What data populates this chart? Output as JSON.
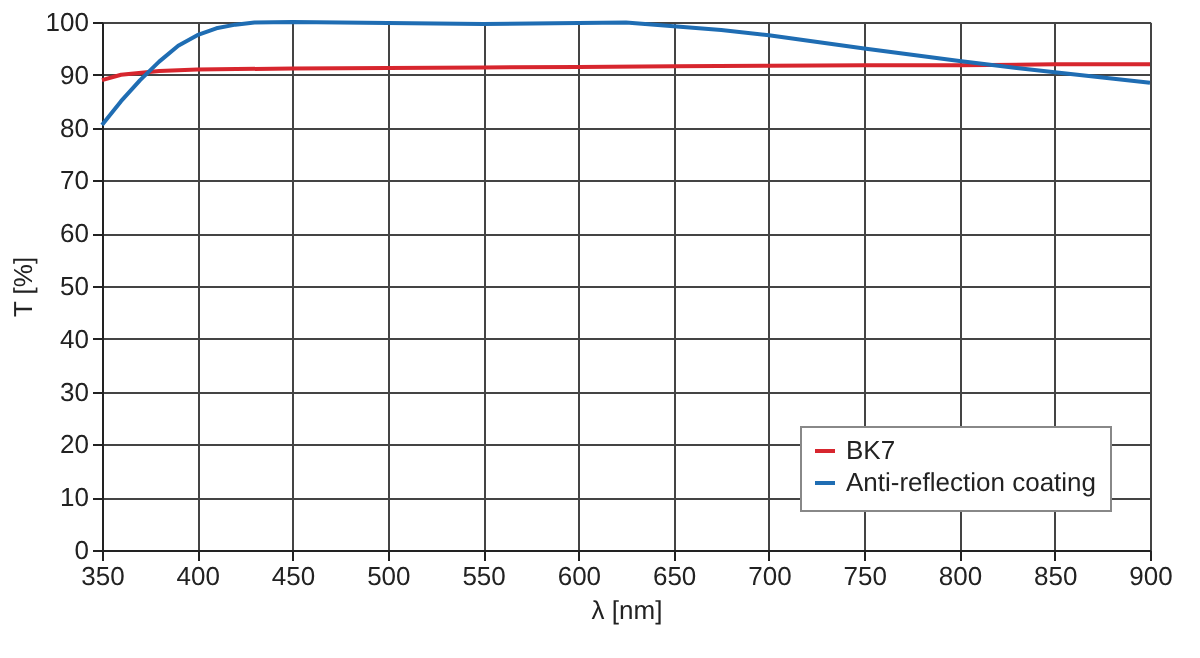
{
  "chart_data": {
    "type": "line",
    "xlabel": "λ [nm]",
    "ylabel": "T [%]",
    "xlim": [
      350,
      900
    ],
    "xticks": [
      350,
      400,
      450,
      500,
      550,
      600,
      650,
      700,
      750,
      800,
      850,
      900
    ],
    "ylim": [
      0,
      100
    ],
    "yticks": [
      0,
      10,
      20,
      30,
      40,
      50,
      60,
      70,
      80,
      90,
      100
    ],
    "grid": true,
    "legend": "bottom right",
    "line_style": "solid",
    "marker": "none",
    "series": [
      {
        "name": "BK7",
        "color": "#d7262e",
        "x": [
          350,
          360,
          380,
          400,
          450,
          500,
          550,
          600,
          650,
          700,
          750,
          800,
          850,
          900
        ],
        "values": [
          89,
          90,
          90.7,
          91,
          91.2,
          91.3,
          91.4,
          91.5,
          91.6,
          91.7,
          91.8,
          91.8,
          92,
          92
        ]
      },
      {
        "name": "Anti-reflection coating",
        "color": "#1f6db3",
        "x": [
          350,
          360,
          370,
          380,
          390,
          400,
          410,
          420,
          430,
          450,
          500,
          550,
          600,
          625,
          650,
          675,
          700,
          750,
          800,
          830,
          850,
          875,
          900
        ],
        "values": [
          80.5,
          85,
          89,
          92.5,
          95.5,
          97.5,
          98.8,
          99.5,
          99.9,
          100,
          99.8,
          99.6,
          99.8,
          99.9,
          99.2,
          98.5,
          97.5,
          95,
          92.6,
          91.3,
          90.5,
          89.5,
          88.5
        ]
      }
    ]
  }
}
